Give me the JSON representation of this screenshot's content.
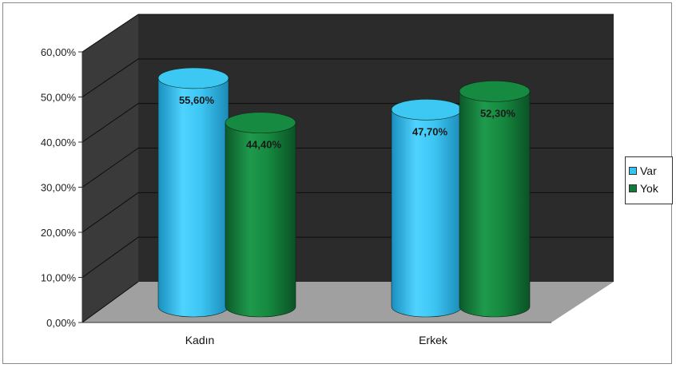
{
  "chart_data": {
    "type": "bar",
    "variant": "3d-cylinder",
    "categories": [
      "Kadın",
      "Erkek"
    ],
    "series": [
      {
        "name": "Var",
        "values": [
          55.6,
          47.7
        ],
        "labels": [
          "55,60%",
          "47,70%"
        ],
        "color": "#35c3f0"
      },
      {
        "name": "Yok",
        "values": [
          44.4,
          52.3
        ],
        "labels": [
          "44,40%",
          "52,30%"
        ],
        "color": "#137a3a"
      }
    ],
    "ylim": [
      0,
      60
    ],
    "yticks": [
      "0,00%",
      "10,00%",
      "20,00%",
      "30,00%",
      "40,00%",
      "50,00%",
      "60,00%"
    ],
    "grid": true,
    "legend_position": "right",
    "colors": {
      "wall": "#2b2b2b",
      "floor": "#a0a0a0",
      "gridline": "#0d0d0d",
      "label_dark": "#1a1a1a"
    }
  }
}
